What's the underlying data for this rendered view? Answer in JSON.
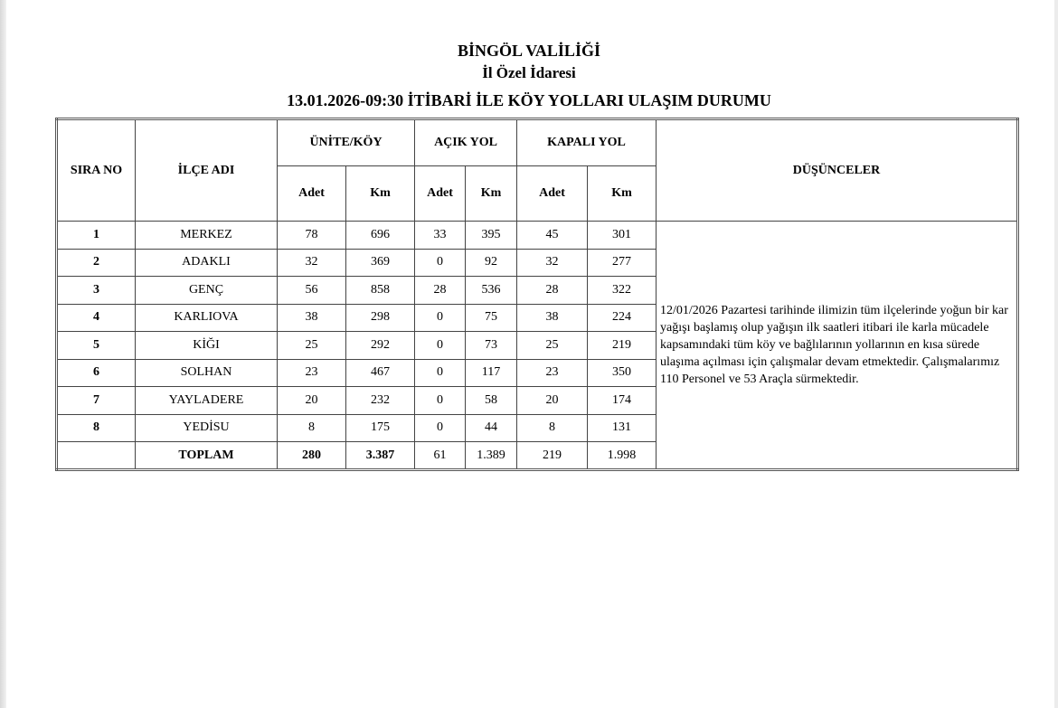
{
  "header": {
    "line1": "BİNGÖL VALİLİĞİ",
    "line2": "İl Özel İdaresi",
    "line3": "13.01.2026-09:30 İTİBARİ İLE KÖY YOLLARI ULAŞIM DURUMU"
  },
  "table": {
    "columns": {
      "sira": "SIRA NO",
      "ilce": "İLÇE ADI",
      "unite": "ÜNİTE/KÖY",
      "acik": "AÇIK YOL",
      "kapali": "KAPALI YOL",
      "dusunceler": "DÜŞÜNCELER",
      "adet": "Adet",
      "km": "Km"
    },
    "rows": [
      {
        "no": "1",
        "name": "MERKEZ",
        "u_adet": "78",
        "u_km": "696",
        "a_adet": "33",
        "a_km": "395",
        "k_adet": "45",
        "k_km": "301"
      },
      {
        "no": "2",
        "name": "ADAKLI",
        "u_adet": "32",
        "u_km": "369",
        "a_adet": "0",
        "a_km": "92",
        "k_adet": "32",
        "k_km": "277"
      },
      {
        "no": "3",
        "name": "GENÇ",
        "u_adet": "56",
        "u_km": "858",
        "a_adet": "28",
        "a_km": "536",
        "k_adet": "28",
        "k_km": "322"
      },
      {
        "no": "4",
        "name": "KARLIOVA",
        "u_adet": "38",
        "u_km": "298",
        "a_adet": "0",
        "a_km": "75",
        "k_adet": "38",
        "k_km": "224"
      },
      {
        "no": "5",
        "name": "KİĞI",
        "u_adet": "25",
        "u_km": "292",
        "a_adet": "0",
        "a_km": "73",
        "k_adet": "25",
        "k_km": "219"
      },
      {
        "no": "6",
        "name": "SOLHAN",
        "u_adet": "23",
        "u_km": "467",
        "a_adet": "0",
        "a_km": "117",
        "k_adet": "23",
        "k_km": "350"
      },
      {
        "no": "7",
        "name": "YAYLADERE",
        "u_adet": "20",
        "u_km": "232",
        "a_adet": "0",
        "a_km": "58",
        "k_adet": "20",
        "k_km": "174"
      },
      {
        "no": "8",
        "name": "YEDİSU",
        "u_adet": "8",
        "u_km": "175",
        "a_adet": "0",
        "a_km": "44",
        "k_adet": "8",
        "k_km": "131"
      }
    ],
    "total": {
      "label": "TOPLAM",
      "u_adet": "280",
      "u_km": "3.387",
      "a_adet": "61",
      "a_km": "1.389",
      "k_adet": "219",
      "k_km": "1.998"
    },
    "notes": "12/01/2026 Pazartesi tarihinde ilimizin tüm ilçelerinde yoğun bir kar yağışı başlamış olup yağışın ilk saatleri itibari ile karla mücadele kapsamındaki tüm köy ve bağlılarının yollarının en kısa sürede ulaşıma açılması için çalışmalar devam etmektedir. Çalışmalarımız 110 Personel ve 53 Araçla sürmektedir."
  }
}
